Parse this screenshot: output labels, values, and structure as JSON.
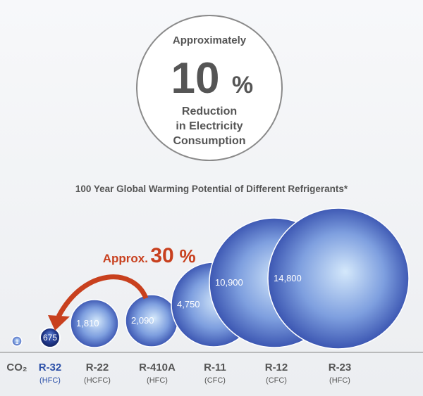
{
  "callout": {
    "approx": "Approximately",
    "value": "10",
    "unit": "%",
    "line1": "Reduction",
    "line2": "in Electricity",
    "line3": "Consumption"
  },
  "annotation": {
    "text": "Approx.",
    "value": "30",
    "unit": "%",
    "color": "#c8401e"
  },
  "colors": {
    "bubble_light": "#cfe4fb",
    "bubble_mid": "#6b8fd8",
    "bubble_dark": "#2c44a6",
    "highlight_bubble_dark": "#0d1c55",
    "highlight_label": "#2c50a8",
    "label": "#555555"
  },
  "chart_data": {
    "type": "bubble",
    "title": "100 Year Global Warming Potential of Different Refrigerants*",
    "items": [
      {
        "name": "CO₂",
        "type": "",
        "value": 1,
        "value_label": "1",
        "highlight": false
      },
      {
        "name": "R-32",
        "type": "(HFC)",
        "value": 675,
        "value_label": "675",
        "highlight": true
      },
      {
        "name": "R-22",
        "type": "(HCFC)",
        "value": 1810,
        "value_label": "1,810",
        "highlight": false
      },
      {
        "name": "R-410A",
        "type": "(HFC)",
        "value": 2090,
        "value_label": "2,090",
        "highlight": false
      },
      {
        "name": "R-11",
        "type": "(CFC)",
        "value": 4750,
        "value_label": "4,750",
        "highlight": false
      },
      {
        "name": "R-12",
        "type": "(CFC)",
        "value": 10900,
        "value_label": "10,900",
        "highlight": false
      },
      {
        "name": "R-23",
        "type": "(HFC)",
        "value": 14800,
        "value_label": "14,800",
        "highlight": false
      }
    ]
  }
}
